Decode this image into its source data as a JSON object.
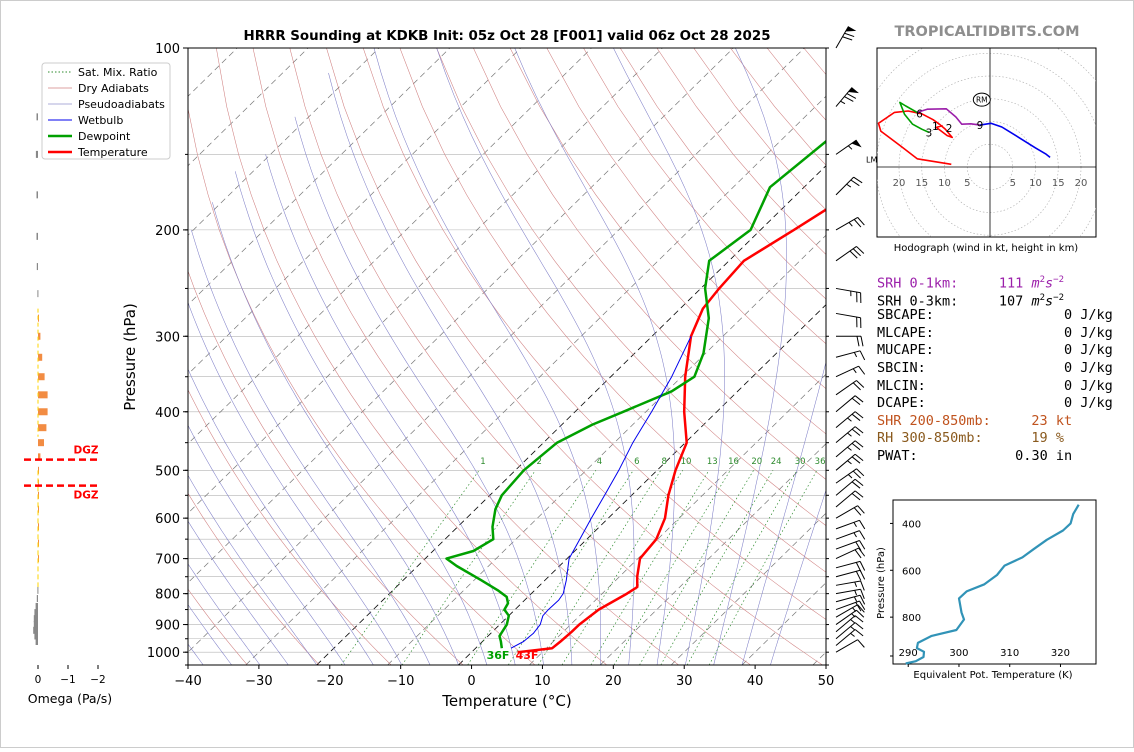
{
  "brand": "TROPICALTIDBITS.COM",
  "colors": {
    "temperature": "#ff0000",
    "dewpoint": "#00a000",
    "wetbulb": "#0000ee",
    "srh1": "#9b1faa",
    "shr": "#c0531e",
    "rh": "#8a5a1e",
    "omega_up": "#f28c43",
    "omega_dn": "#888888",
    "mix": "#2e8b2e"
  },
  "chart_data": [
    {
      "type": "line",
      "subtype": "skew-t log-p sounding",
      "title": "HRRR Sounding at KDKB Init: 05z Oct 28 [F001] valid 06z Oct 28 2025",
      "xlabel": "Temperature (°C)",
      "ylabel": "Pressure (hPa)",
      "xlim": [
        -40,
        50
      ],
      "ylim": [
        1050,
        100
      ],
      "y_scale": "log",
      "xticks": [
        "−40",
        "−30",
        "−20",
        "−10",
        "0",
        "10",
        "20",
        "30",
        "40",
        "50"
      ],
      "yticks": [
        100,
        200,
        300,
        400,
        500,
        600,
        700,
        800,
        900,
        1000
      ],
      "legend_position": "upper-left",
      "legend": [
        "Sat. Mix. Ratio",
        "Dry Adiabats",
        "Pseudoadiabats",
        "Wetbulb",
        "Dewpoint",
        "Temperature"
      ],
      "mixing_ratio_labels": [
        "1",
        "2",
        "4",
        "6",
        "8",
        "10",
        "13",
        "16",
        "20",
        "24",
        "30",
        "36"
      ],
      "surface_labels": {
        "dewpoint": "36F",
        "temperature": "43F"
      },
      "series": [
        {
          "name": "Temperature",
          "points": [
            [
              1000,
              6.5
            ],
            [
              985,
              10.8
            ],
            [
              960,
              11.0
            ],
            [
              925,
              11.2
            ],
            [
              900,
              11.2
            ],
            [
              850,
              11.8
            ],
            [
              800,
              13.5
            ],
            [
              780,
              14
            ],
            [
              750,
              12.5
            ],
            [
              700,
              10.3
            ],
            [
              650,
              9.8
            ],
            [
              600,
              8.0
            ],
            [
              550,
              5.2
            ],
            [
              500,
              2.6
            ],
            [
              450,
              0.2
            ],
            [
              400,
              -4.6
            ],
            [
              350,
              -9.5
            ],
            [
              300,
              -14.5
            ],
            [
              270,
              -16.8
            ],
            [
              250,
              -17.4
            ],
            [
              225,
              -17.9
            ],
            [
              200,
              -15.3
            ],
            [
              170,
              -11.9
            ],
            [
              140,
              -9.2
            ],
            [
              120,
              -7.4
            ],
            [
              110,
              -7.1
            ],
            [
              100,
              -6.6
            ]
          ]
        },
        {
          "name": "Dewpoint",
          "points": [
            [
              985,
              3.7
            ],
            [
              960,
              2.6
            ],
            [
              940,
              1.6
            ],
            [
              900,
              1.0
            ],
            [
              870,
              0.0
            ],
            [
              850,
              -1.5
            ],
            [
              830,
              -1.9
            ],
            [
              810,
              -3.0
            ],
            [
              790,
              -5.2
            ],
            [
              760,
              -9.0
            ],
            [
              720,
              -14.5
            ],
            [
              700,
              -17.0
            ],
            [
              680,
              -14.3
            ],
            [
              650,
              -13.2
            ],
            [
              620,
              -15.1
            ],
            [
              580,
              -17.2
            ],
            [
              550,
              -18.3
            ],
            [
              500,
              -18.8
            ],
            [
              450,
              -18.1
            ],
            [
              420,
              -15.7
            ],
            [
              400,
              -13.2
            ],
            [
              370,
              -9.3
            ],
            [
              350,
              -8.2
            ],
            [
              320,
              -10.3
            ],
            [
              280,
              -14.6
            ],
            [
              250,
              -19.4
            ],
            [
              225,
              -22.8
            ],
            [
              200,
              -21.4
            ],
            [
              170,
              -24.8
            ],
            [
              130,
              -22.8
            ],
            [
              100,
              -17.5
            ]
          ]
        },
        {
          "name": "Wetbulb",
          "points": [
            [
              985,
              5.0
            ],
            [
              960,
              5.8
            ],
            [
              930,
              6.0
            ],
            [
              900,
              5.7
            ],
            [
              870,
              4.8
            ],
            [
              850,
              4.7
            ],
            [
              820,
              4.8
            ],
            [
              800,
              4.5
            ],
            [
              760,
              3.0
            ],
            [
              700,
              0.3
            ],
            [
              650,
              -1.0
            ],
            [
              600,
              -2.4
            ],
            [
              550,
              -3.8
            ],
            [
              500,
              -5.4
            ],
            [
              450,
              -7.4
            ],
            [
              400,
              -9.2
            ],
            [
              350,
              -11.4
            ],
            [
              300,
              -14.5
            ]
          ]
        }
      ]
    },
    {
      "type": "bar",
      "subtype": "omega profile",
      "xlabel": "Omega (Pa/s)",
      "xticks": [
        "0",
        "−1",
        "−2"
      ],
      "annotations": [
        "DGZ",
        "DGZ"
      ],
      "dgz_pressure": [
        480,
        530
      ],
      "bars": [
        {
          "p": 130,
          "omega": 0.05
        },
        {
          "p": 150,
          "omega": 0.07
        },
        {
          "p": 175,
          "omega": 0.05
        },
        {
          "p": 205,
          "omega": 0.05
        },
        {
          "p": 230,
          "omega": 0.04
        },
        {
          "p": 255,
          "omega": 0.02
        },
        {
          "p": 280,
          "omega": -0.03
        },
        {
          "p": 300,
          "omega": -0.08
        },
        {
          "p": 325,
          "omega": -0.14
        },
        {
          "p": 350,
          "omega": -0.22
        },
        {
          "p": 375,
          "omega": -0.32
        },
        {
          "p": 400,
          "omega": -0.32
        },
        {
          "p": 425,
          "omega": -0.28
        },
        {
          "p": 450,
          "omega": -0.2
        },
        {
          "p": 475,
          "omega": -0.08
        },
        {
          "p": 500,
          "omega": -0.03
        },
        {
          "p": 525,
          "omega": -0.02
        },
        {
          "p": 550,
          "omega": -0.01
        },
        {
          "p": 580,
          "omega": -0.01
        },
        {
          "p": 620,
          "omega": -0.01
        },
        {
          "p": 660,
          "omega": -0.01
        },
        {
          "p": 700,
          "omega": -0.01
        },
        {
          "p": 790,
          "omega": 0.02
        },
        {
          "p": 815,
          "omega": 0.04
        },
        {
          "p": 840,
          "omega": 0.08
        },
        {
          "p": 860,
          "omega": 0.12
        },
        {
          "p": 880,
          "omega": 0.14
        },
        {
          "p": 900,
          "omega": 0.14
        },
        {
          "p": 920,
          "omega": 0.16
        },
        {
          "p": 940,
          "omega": 0.12
        },
        {
          "p": 960,
          "omega": 0.08
        }
      ]
    },
    {
      "type": "line",
      "subtype": "hodograph",
      "xlabel": "Hodograph (wind in kt, height in km)",
      "rings": [
        5,
        10,
        15,
        20,
        25,
        30
      ],
      "tick_labels": [
        "20",
        "15",
        "10",
        "5",
        "5",
        "10",
        "15",
        "20"
      ],
      "height_labels": [
        {
          "label": "1",
          "u": -12,
          "v": 9
        },
        {
          "label": "2",
          "u": -9,
          "v": 8.6
        },
        {
          "label": "3",
          "u": -13.4,
          "v": 7.6
        },
        {
          "label": "6",
          "u": -15.5,
          "v": 11.8
        },
        {
          "label": "9",
          "u": -2.2,
          "v": 9.2
        }
      ],
      "marker": "RM",
      "marker_position": [
        -1.8,
        14.8
      ],
      "series": [
        {
          "name": "0-3km",
          "color": "#ff0000",
          "points": [
            [
              -8.5,
              0.6
            ],
            [
              -16,
              1.8
            ],
            [
              -19.5,
              4.5
            ],
            [
              -24,
              7.9
            ],
            [
              -24.5,
              9.6
            ],
            [
              -21,
              12
            ],
            [
              -18,
              12.3
            ],
            [
              -15,
              11.7
            ],
            [
              -12.5,
              10.4
            ],
            [
              -11,
              9.3
            ],
            [
              -9.8,
              8.3
            ],
            [
              -8.9,
              7.2
            ],
            [
              -8.3,
              6.5
            ],
            [
              -9.4,
              6.9
            ],
            [
              -11.8,
              8.7
            ],
            [
              -10.4,
              9.1
            ]
          ]
        },
        {
          "name": "3-6km",
          "color": "#00a000",
          "points": [
            [
              -13.4,
              7.6
            ],
            [
              -15,
              8.3
            ],
            [
              -17,
              9.4
            ],
            [
              -18.8,
              11.6
            ],
            [
              -19.8,
              14.2
            ],
            [
              -18.5,
              13.4
            ],
            [
              -16,
              12
            ]
          ]
        },
        {
          "name": "6-9km",
          "color": "#9b1faa",
          "points": [
            [
              -16,
              12
            ],
            [
              -13.8,
              12.7
            ],
            [
              -9.6,
              12.8
            ],
            [
              -7.5,
              11
            ],
            [
              -6.2,
              9.4
            ],
            [
              -4.2,
              9.5
            ],
            [
              -2.2,
              9.2
            ]
          ]
        },
        {
          "name": "9-12km",
          "color": "#0000ee",
          "points": [
            [
              -2.2,
              9.2
            ],
            [
              0.2,
              9.6
            ],
            [
              2.6,
              8.8
            ],
            [
              6.3,
              6.5
            ],
            [
              10,
              4.2
            ],
            [
              12.2,
              2.9
            ],
            [
              13.2,
              2.1
            ]
          ]
        }
      ]
    },
    {
      "type": "line",
      "subtype": "theta-e profile",
      "xlabel": "Equivalent Pot. Temperature (K)",
      "ylabel": "Pressure (hPa)",
      "xlim": [
        287,
        327
      ],
      "ylim": [
        1000,
        300
      ],
      "xticks": [
        "290",
        "300",
        "310",
        "320"
      ],
      "yticks": [
        "400",
        "600",
        "800"
      ],
      "series": [
        {
          "name": "Theta-e",
          "points": [
            [
              998,
              289.5
            ],
            [
              988,
              291.5
            ],
            [
              970,
              293.0
            ],
            [
              948,
              293.1
            ],
            [
              932,
              291.7
            ],
            [
              910,
              291.9
            ],
            [
              880,
              294.6
            ],
            [
              855,
              299.5
            ],
            [
              810,
              301.0
            ],
            [
              780,
              300.5
            ],
            [
              720,
              300.0
            ],
            [
              690,
              301.5
            ],
            [
              660,
              305.0
            ],
            [
              620,
              307.5
            ],
            [
              580,
              309.0
            ],
            [
              545,
              312.5
            ],
            [
              510,
              314.7
            ],
            [
              470,
              317.3
            ],
            [
              430,
              320.5
            ],
            [
              400,
              322.0
            ],
            [
              360,
              322.5
            ],
            [
              320,
              323.6
            ]
          ]
        }
      ]
    }
  ],
  "stats": [
    {
      "label": "SRH 0-1km:",
      "value": "111",
      "unit": "m",
      "sup": "2",
      "unit2": "s",
      "sup2": "−2",
      "color": "#9b1faa"
    },
    {
      "label": "SRH 0-3km:",
      "value": "107",
      "unit": "m",
      "sup": "2",
      "unit2": "s",
      "sup2": "−2",
      "color": "#000000"
    },
    {
      "label": "SBCAPE:",
      "value": "0",
      "unit": "J/kg",
      "color": "#000000"
    },
    {
      "label": "MLCAPE:",
      "value": "0",
      "unit": "J/kg",
      "color": "#000000"
    },
    {
      "label": "MUCAPE:",
      "value": "0",
      "unit": "J/kg",
      "color": "#000000"
    },
    {
      "label": "SBCIN:",
      "value": "0",
      "unit": "J/kg",
      "color": "#000000"
    },
    {
      "label": "MLCIN:",
      "value": "0",
      "unit": "J/kg",
      "color": "#000000"
    },
    {
      "label": "DCAPE:",
      "value": "0",
      "unit": "J/kg",
      "color": "#000000"
    },
    {
      "label": "SHR 200-850mb:",
      "value": "23",
      "unit": "kt",
      "color": "#c0531e"
    },
    {
      "label": "RH 300-850mb:",
      "value": "19",
      "unit": "%",
      "color": "#8a5a1e"
    },
    {
      "label": "PWAT:",
      "value": "0.30",
      "unit": "in",
      "color": "#000000"
    }
  ],
  "wind_barbs": {
    "lm_label": "LM",
    "levels": [
      {
        "p": 100,
        "speed": 70,
        "dir": 210
      },
      {
        "p": 125,
        "speed": 75,
        "dir": 220
      },
      {
        "p": 150,
        "speed": 55,
        "dir": 235
      },
      {
        "p": 175,
        "speed": 25,
        "dir": 225
      },
      {
        "p": 200,
        "speed": 25,
        "dir": 240
      },
      {
        "p": 225,
        "speed": 30,
        "dir": 235
      },
      {
        "p": 250,
        "speed": 25,
        "dir": 280
      },
      {
        "p": 275,
        "speed": 20,
        "dir": 280
      },
      {
        "p": 300,
        "speed": 20,
        "dir": 270
      },
      {
        "p": 325,
        "speed": 15,
        "dir": 255
      },
      {
        "p": 350,
        "speed": 15,
        "dir": 245
      },
      {
        "p": 375,
        "speed": 20,
        "dir": 235
      },
      {
        "p": 400,
        "speed": 20,
        "dir": 230
      },
      {
        "p": 425,
        "speed": 25,
        "dir": 230
      },
      {
        "p": 450,
        "speed": 25,
        "dir": 230
      },
      {
        "p": 475,
        "speed": 25,
        "dir": 230
      },
      {
        "p": 500,
        "speed": 25,
        "dir": 230
      },
      {
        "p": 525,
        "speed": 25,
        "dir": 235
      },
      {
        "p": 550,
        "speed": 20,
        "dir": 230
      },
      {
        "p": 575,
        "speed": 20,
        "dir": 230
      },
      {
        "p": 600,
        "speed": 20,
        "dir": 240
      },
      {
        "p": 625,
        "speed": 15,
        "dir": 250
      },
      {
        "p": 650,
        "speed": 15,
        "dir": 250
      },
      {
        "p": 675,
        "speed": 20,
        "dir": 250
      },
      {
        "p": 700,
        "speed": 20,
        "dir": 245
      },
      {
        "p": 725,
        "speed": 20,
        "dir": 255
      },
      {
        "p": 750,
        "speed": 20,
        "dir": 255
      },
      {
        "p": 775,
        "speed": 15,
        "dir": 260
      },
      {
        "p": 800,
        "speed": 15,
        "dir": 260
      },
      {
        "p": 825,
        "speed": 15,
        "dir": 255
      },
      {
        "p": 850,
        "speed": 20,
        "dir": 250
      },
      {
        "p": 875,
        "speed": 15,
        "dir": 240
      },
      {
        "p": 900,
        "speed": 15,
        "dir": 235
      },
      {
        "p": 925,
        "speed": 15,
        "dir": 230
      },
      {
        "p": 950,
        "speed": 15,
        "dir": 230
      },
      {
        "p": 975,
        "speed": 15,
        "dir": 230
      },
      {
        "p": 1000,
        "speed": 10,
        "dir": 240
      }
    ]
  }
}
